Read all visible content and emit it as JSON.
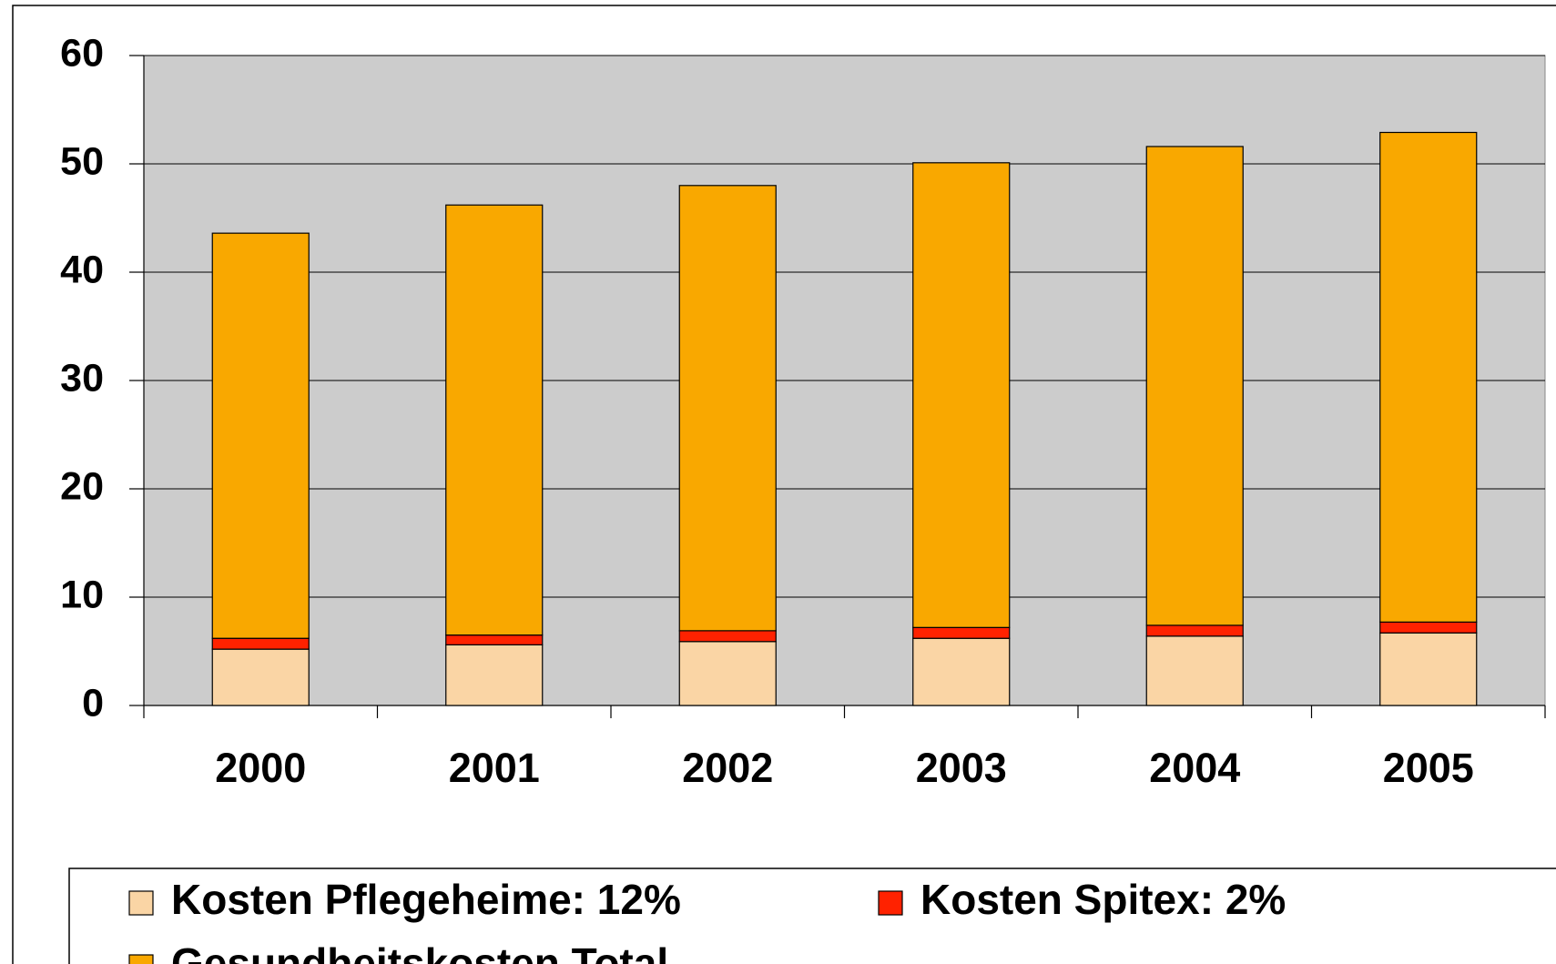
{
  "chart_data": {
    "type": "stacked_bar",
    "categories": [
      "2000",
      "2001",
      "2002",
      "2003",
      "2004",
      "2005"
    ],
    "series": [
      {
        "name": "Kosten Pflegeheime: 12%",
        "color": "#fad5a5",
        "values": [
          5.2,
          5.6,
          5.9,
          6.2,
          6.4,
          6.7
        ]
      },
      {
        "name": "Kosten Spitex: 2%",
        "color": "#ff2200",
        "values": [
          1.0,
          0.9,
          1.0,
          1.0,
          1.0,
          1.0
        ]
      },
      {
        "name": "Gesundheitskosten Total",
        "color": "#f9a800",
        "values": [
          37.4,
          39.7,
          41.1,
          42.9,
          44.2,
          45.2
        ]
      }
    ],
    "ylim": [
      0,
      60
    ],
    "yticks": [
      0,
      10,
      20,
      30,
      40,
      50,
      60
    ],
    "grid": true
  }
}
